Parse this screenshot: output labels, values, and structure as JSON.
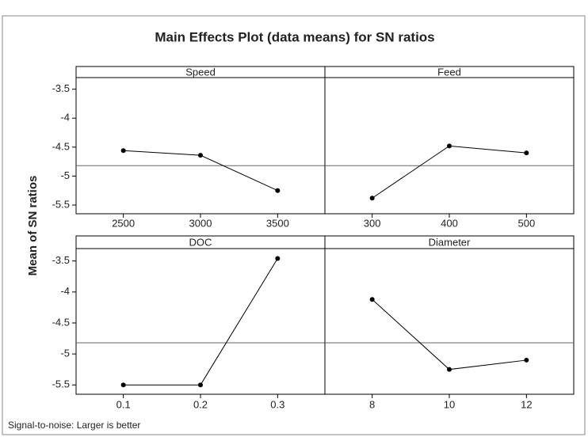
{
  "title": "Main Effects Plot (data means) for SN ratios",
  "y_label": "Mean of SN ratios",
  "footnote": "Signal-to-noise: Larger is better",
  "chart_data": [
    {
      "type": "line",
      "title": "Speed",
      "categories": [
        "2500",
        "3000",
        "3500"
      ],
      "values": [
        -4.56,
        -4.64,
        -5.25
      ],
      "color": "#000000",
      "reference_line": -4.82,
      "ylim": [
        -5.65,
        -3.3
      ],
      "yticks": [
        -3.5,
        -4.0,
        -4.5,
        -5.0,
        -5.5
      ]
    },
    {
      "type": "line",
      "title": "Feed",
      "categories": [
        "300",
        "400",
        "500"
      ],
      "values": [
        -5.38,
        -4.48,
        -4.6
      ],
      "color": "#000000",
      "reference_line": -4.82,
      "ylim": [
        -5.65,
        -3.3
      ]
    },
    {
      "type": "line",
      "title": "DOC",
      "categories": [
        "0.1",
        "0.2",
        "0.3"
      ],
      "values": [
        -5.5,
        -5.5,
        -3.46
      ],
      "color": "#000000",
      "reference_line": -4.82,
      "ylim": [
        -5.65,
        -3.3
      ],
      "yticks": [
        -3.5,
        -4.0,
        -4.5,
        -5.0,
        -5.5
      ]
    },
    {
      "type": "line",
      "title": "Diameter",
      "categories": [
        "8",
        "10",
        "12"
      ],
      "values": [
        -4.12,
        -5.25,
        -5.1
      ],
      "color": "#000000",
      "reference_line": -4.82,
      "ylim": [
        -5.65,
        -3.3
      ]
    }
  ]
}
